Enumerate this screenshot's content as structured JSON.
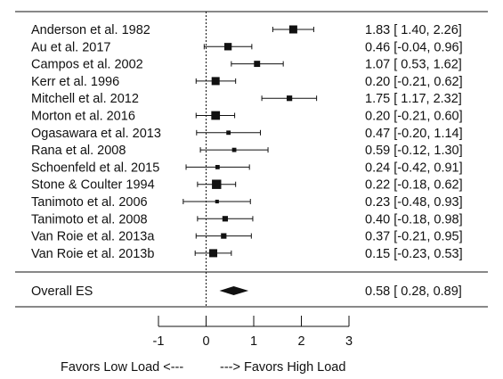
{
  "chart_data": {
    "type": "forest",
    "xlim": [
      -1,
      3
    ],
    "x_ticks": [
      "-1",
      "0",
      "1",
      "2",
      "3"
    ],
    "reference_line": 0,
    "studies": [
      {
        "label": "Anderson et al. 1982",
        "es": 1.83,
        "lo": 1.4,
        "hi": 2.26,
        "ci_text": "1.83 [ 1.40, 2.26]",
        "weight": 1.0
      },
      {
        "label": "Au et al. 2017",
        "es": 0.46,
        "lo": -0.04,
        "hi": 0.96,
        "ci_text": "0.46 [-0.04, 0.96]",
        "weight": 0.9
      },
      {
        "label": "Campos et al. 2002",
        "es": 1.07,
        "lo": 0.53,
        "hi": 1.62,
        "ci_text": "1.07 [ 0.53, 1.62]",
        "weight": 0.7
      },
      {
        "label": "Kerr et al. 1996",
        "es": 0.2,
        "lo": -0.21,
        "hi": 0.62,
        "ci_text": "0.20 [-0.21, 0.62]",
        "weight": 1.0
      },
      {
        "label": "Mitchell et al. 2012",
        "es": 1.75,
        "lo": 1.17,
        "hi": 2.32,
        "ci_text": "1.75 [ 1.17, 2.32]",
        "weight": 0.6
      },
      {
        "label": "Morton et al. 2016",
        "es": 0.2,
        "lo": -0.21,
        "hi": 0.6,
        "ci_text": "0.20 [-0.21, 0.60]",
        "weight": 1.1
      },
      {
        "label": "Ogasawara et al. 2013",
        "es": 0.47,
        "lo": -0.2,
        "hi": 1.14,
        "ci_text": "0.47 [-0.20, 1.14]",
        "weight": 0.4
      },
      {
        "label": "Rana et al. 2008",
        "es": 0.59,
        "lo": -0.12,
        "hi": 1.3,
        "ci_text": "0.59 [-0.12, 1.30]",
        "weight": 0.4
      },
      {
        "label": "Schoenfeld et al. 2015",
        "es": 0.24,
        "lo": -0.42,
        "hi": 0.91,
        "ci_text": "0.24 [-0.42, 0.91]",
        "weight": 0.4
      },
      {
        "label": "Stone & Coulter 1994",
        "es": 0.22,
        "lo": -0.18,
        "hi": 0.62,
        "ci_text": "0.22 [-0.18, 0.62]",
        "weight": 1.2
      },
      {
        "label": "Tanimoto et al. 2006",
        "es": 0.23,
        "lo": -0.48,
        "hi": 0.93,
        "ci_text": "0.23 [-0.48, 0.93]",
        "weight": 0.3
      },
      {
        "label": "Tanimoto et al. 2008",
        "es": 0.4,
        "lo": -0.18,
        "hi": 0.98,
        "ci_text": "0.40 [-0.18, 0.98]",
        "weight": 0.6
      },
      {
        "label": "Van Roie et al. 2013a",
        "es": 0.37,
        "lo": -0.21,
        "hi": 0.95,
        "ci_text": "0.37 [-0.21, 0.95]",
        "weight": 0.6
      },
      {
        "label": "Van Roie et al. 2013b",
        "es": 0.15,
        "lo": -0.23,
        "hi": 0.53,
        "ci_text": "0.15 [-0.23, 0.53]",
        "weight": 1.0
      }
    ],
    "overall": {
      "label": "Overall ES",
      "es": 0.58,
      "lo": 0.28,
      "hi": 0.89,
      "ci_text": "0.58 [ 0.28, 0.89]"
    },
    "caption_left": "Favors Low Load <---",
    "caption_right": "---> Favors High Load"
  }
}
